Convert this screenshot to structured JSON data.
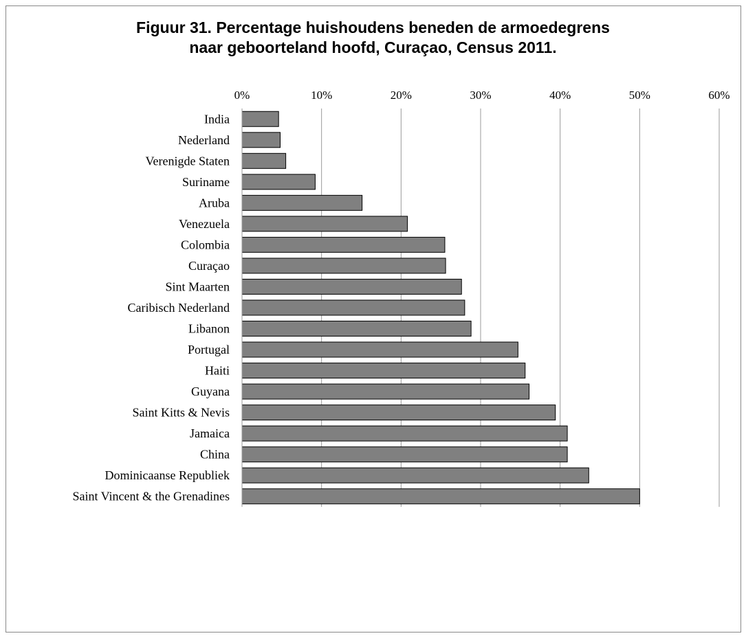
{
  "chart_data": {
    "type": "bar",
    "orientation": "horizontal",
    "title": "Figuur 31. Percentage huishoudens beneden de armoedegrens",
    "subtitle": "naar geboorteland hoofd, Curaçao,  Census 2011.",
    "categories": [
      "India",
      "Nederland",
      "Verenigde Staten",
      "Suriname",
      "Aruba",
      "Venezuela",
      "Colombia",
      "Curaçao",
      "Sint Maarten",
      "Caribisch Nederland",
      "Libanon",
      "Portugal",
      "Haiti",
      "Guyana",
      "Saint Kitts & Nevis",
      "Jamaica",
      "China",
      "Dominicaanse Republiek",
      "Saint Vincent & the Grenadines"
    ],
    "values": [
      4.6,
      4.8,
      5.5,
      9.2,
      15.1,
      20.8,
      25.5,
      25.6,
      27.6,
      28.0,
      28.8,
      34.7,
      35.6,
      36.1,
      39.4,
      40.9,
      40.9,
      43.6,
      50.0
    ],
    "xlim": [
      0,
      60
    ],
    "xticks": [
      "0%",
      "10%",
      "20%",
      "30%",
      "40%",
      "50%",
      "60%"
    ],
    "axis_position": "top",
    "grid": true,
    "bar_color": "#808080"
  }
}
